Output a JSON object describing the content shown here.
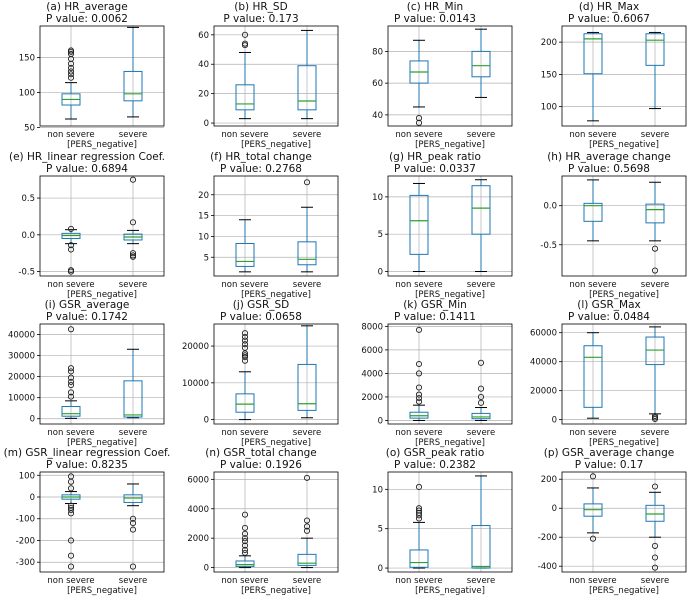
{
  "colors": {
    "box": "#1f77b4",
    "median": "#2ca02c",
    "grid": "#b0b0b0",
    "axis": "#000000"
  },
  "categories": [
    "non severe",
    "severe"
  ],
  "xlabel": "[PERS_negative]",
  "chart_data": [
    {
      "type": "box",
      "title": "(a) HR_average",
      "pvalue": "P value: 0.0062",
      "ylim": [
        52,
        195
      ],
      "yticks": [
        "50",
        "100",
        "150"
      ],
      "ytick_values": [
        50,
        100,
        150
      ],
      "boxes": [
        {
          "min": 62,
          "q1": 82,
          "median": 90,
          "q3": 98,
          "max": 114,
          "outliers": [
            121,
            126,
            130,
            135,
            141,
            148,
            155,
            158,
            160
          ]
        },
        {
          "min": 65,
          "q1": 88,
          "median": 98,
          "q3": 130,
          "max": 193,
          "outliers": []
        }
      ]
    },
    {
      "type": "box",
      "title": "(b) HR_SD",
      "pvalue": "P value: 0.173",
      "ylim": [
        -2,
        66
      ],
      "yticks": [
        "0",
        "20",
        "40",
        "60"
      ],
      "ytick_values": [
        0,
        20,
        40,
        60
      ],
      "boxes": [
        {
          "min": 3,
          "q1": 9,
          "median": 13,
          "q3": 26,
          "max": 48,
          "outliers": [
            53,
            54,
            60
          ]
        },
        {
          "min": 3,
          "q1": 9,
          "median": 15,
          "q3": 39,
          "max": 63,
          "outliers": []
        }
      ]
    },
    {
      "type": "box",
      "title": "(c) HR_Min",
      "pvalue": "P value: 0.0143",
      "ylim": [
        33,
        96
      ],
      "yticks": [
        "40",
        "60",
        "80"
      ],
      "ytick_values": [
        40,
        60,
        80
      ],
      "boxes": [
        {
          "min": 45,
          "q1": 60,
          "median": 67,
          "q3": 74,
          "max": 87,
          "outliers": [
            35,
            38
          ]
        },
        {
          "min": 51,
          "q1": 64,
          "median": 71,
          "q3": 80,
          "max": 94,
          "outliers": []
        }
      ]
    },
    {
      "type": "box",
      "title": "(d) HR_Max",
      "pvalue": "P value: 0.6067",
      "ylim": [
        70,
        225
      ],
      "yticks": [
        "100",
        "150",
        "200"
      ],
      "ytick_values": [
        100,
        150,
        200
      ],
      "boxes": [
        {
          "min": 78,
          "q1": 151,
          "median": 205,
          "q3": 213,
          "max": 215,
          "outliers": []
        },
        {
          "min": 97,
          "q1": 164,
          "median": 203,
          "q3": 213,
          "max": 215,
          "outliers": []
        }
      ]
    },
    {
      "type": "box",
      "title": "(e) HR_linear regression Coef.",
      "pvalue": "P value: 0.6894",
      "ylim": [
        -0.56,
        0.8
      ],
      "yticks": [
        "-0.5",
        "0.0",
        "0.5"
      ],
      "ytick_values": [
        -0.5,
        0,
        0.5
      ],
      "boxes": [
        {
          "min": -0.12,
          "q1": -0.05,
          "median": -0.01,
          "q3": 0.02,
          "max": 0.07,
          "outliers": [
            0.08,
            -0.14,
            -0.2,
            -0.48,
            -0.5
          ]
        },
        {
          "min": -0.12,
          "q1": -0.07,
          "median": -0.03,
          "q3": 0.01,
          "max": 0.06,
          "outliers": [
            0.17,
            0.75,
            -0.25,
            -0.28,
            -0.3
          ]
        }
      ]
    },
    {
      "type": "box",
      "title": "(f) HR_total change",
      "pvalue": "P value: 0.2768",
      "ylim": [
        0.5,
        24.5
      ],
      "yticks": [
        "5",
        "10",
        "15",
        "20"
      ],
      "ytick_values": [
        5,
        10,
        15,
        20
      ],
      "boxes": [
        {
          "min": 1.5,
          "q1": 2.8,
          "median": 4,
          "q3": 8.3,
          "max": 14,
          "outliers": []
        },
        {
          "min": 1.5,
          "q1": 3.2,
          "median": 4.5,
          "q3": 8.7,
          "max": 17,
          "outliers": [
            23
          ]
        }
      ]
    },
    {
      "type": "box",
      "title": "(g) HR_peak ratio",
      "pvalue": "P value: 0.0337",
      "ylim": [
        -0.6,
        12.8
      ],
      "yticks": [
        "0",
        "5",
        "10"
      ],
      "ytick_values": [
        0,
        5,
        10
      ],
      "boxes": [
        {
          "min": 0,
          "q1": 2.3,
          "median": 6.8,
          "q3": 10.2,
          "max": 11.8,
          "outliers": []
        },
        {
          "min": 0,
          "q1": 5,
          "median": 8.5,
          "q3": 11.5,
          "max": 12.3,
          "outliers": []
        }
      ]
    },
    {
      "type": "box",
      "title": "(h) HR_average change",
      "pvalue": "P value: 0.5698",
      "ylim": [
        -0.9,
        0.38
      ],
      "yticks": [
        "-0.5",
        "0.0"
      ],
      "ytick_values": [
        -0.5,
        0
      ],
      "boxes": [
        {
          "min": -0.45,
          "q1": -0.2,
          "median": 0,
          "q3": 0.03,
          "max": 0.33,
          "outliers": []
        },
        {
          "min": -0.45,
          "q1": -0.22,
          "median": -0.05,
          "q3": 0.02,
          "max": 0.3,
          "outliers": [
            -0.55,
            -0.83
          ]
        }
      ]
    },
    {
      "type": "box",
      "title": "(i) GSR_average",
      "pvalue": "P value: 0.1742",
      "ylim": [
        -2500,
        45000
      ],
      "yticks": [
        "0",
        "10000",
        "20000",
        "30000",
        "40000"
      ],
      "ytick_values": [
        0,
        10000,
        20000,
        30000,
        40000
      ],
      "boxes": [
        {
          "min": 200,
          "q1": 1200,
          "median": 2400,
          "q3": 5800,
          "max": 8500,
          "outliers": [
            10500,
            12500,
            16000,
            17500,
            19500,
            22500,
            24000,
            42500
          ]
        },
        {
          "min": 500,
          "q1": 800,
          "median": 1800,
          "q3": 18000,
          "max": 33000,
          "outliers": []
        }
      ]
    },
    {
      "type": "box",
      "title": "(j) GSR_SD",
      "pvalue": "P value: 0.0658",
      "ylim": [
        -1200,
        26000
      ],
      "yticks": [
        "0",
        "10000",
        "20000"
      ],
      "ytick_values": [
        0,
        10000,
        20000
      ],
      "boxes": [
        {
          "min": 0,
          "q1": 2000,
          "median": 4200,
          "q3": 7000,
          "max": 13000,
          "outliers": [
            16000,
            17000,
            17500,
            18000,
            19500,
            20500,
            21500,
            22500,
            23500
          ]
        },
        {
          "min": 500,
          "q1": 2500,
          "median": 4300,
          "q3": 15000,
          "max": 25500,
          "outliers": []
        }
      ]
    },
    {
      "type": "box",
      "title": "(k) GSR_Min",
      "pvalue": "P value: 0.1411",
      "ylim": [
        -300,
        8200
      ],
      "yticks": [
        "0",
        "2000",
        "4000",
        "6000",
        "8000"
      ],
      "ytick_values": [
        0,
        2000,
        4000,
        6000,
        8000
      ],
      "boxes": [
        {
          "min": 0,
          "q1": 200,
          "median": 400,
          "q3": 700,
          "max": 1300,
          "outliers": [
            1600,
            1900,
            2200,
            2800,
            4000,
            4800,
            7700
          ]
        },
        {
          "min": 0,
          "q1": 150,
          "median": 300,
          "q3": 600,
          "max": 1100,
          "outliers": [
            1500,
            2000,
            2700,
            4900
          ]
        }
      ]
    },
    {
      "type": "box",
      "title": "(l) GSR_Max",
      "pvalue": "P value: 0.0484",
      "ylim": [
        -3000,
        66000
      ],
      "yticks": [
        "0",
        "20000",
        "40000",
        "60000"
      ],
      "ytick_values": [
        0,
        20000,
        40000,
        60000
      ],
      "boxes": [
        {
          "min": 1000,
          "q1": 8500,
          "median": 43000,
          "q3": 51000,
          "max": 60000,
          "outliers": []
        },
        {
          "min": 4000,
          "q1": 38000,
          "median": 48000,
          "q3": 57000,
          "max": 64000,
          "outliers": [
            500,
            1500,
            2500
          ]
        }
      ]
    },
    {
      "type": "box",
      "title": "(m) GSR_linear regression Coef.",
      "pvalue": "P value: 0.8235",
      "ylim": [
        -345,
        115
      ],
      "yticks": [
        "-300",
        "-200",
        "-100",
        "0",
        "100"
      ],
      "ytick_values": [
        -300,
        -200,
        -100,
        0,
        100
      ],
      "boxes": [
        {
          "min": -30,
          "q1": -10,
          "median": 0,
          "q3": 10,
          "max": 25,
          "outliers": [
            40,
            70,
            95,
            -40,
            -50,
            -60,
            -75,
            -200,
            -270,
            -320
          ]
        },
        {
          "min": -40,
          "q1": -25,
          "median": -5,
          "q3": 10,
          "max": 60,
          "outliers": [
            -100,
            -120,
            -150,
            -320
          ]
        }
      ]
    },
    {
      "type": "box",
      "title": "(n) GSR_total change",
      "pvalue": "P value: 0.1926",
      "ylim": [
        -300,
        6500
      ],
      "yticks": [
        "0",
        "2000",
        "4000",
        "6000"
      ],
      "ytick_values": [
        0,
        2000,
        4000,
        6000
      ],
      "boxes": [
        {
          "min": 0,
          "q1": 80,
          "median": 200,
          "q3": 450,
          "max": 800,
          "outliers": [
            1000,
            1200,
            1500,
            1800,
            2000,
            2300,
            2700,
            3600
          ]
        },
        {
          "min": 0,
          "q1": 150,
          "median": 300,
          "q3": 900,
          "max": 2000,
          "outliers": [
            2500,
            2800,
            3200,
            6100
          ]
        }
      ]
    },
    {
      "type": "box",
      "title": "(o) GSR_peak ratio",
      "pvalue": "P value: 0.2382",
      "ylim": [
        -0.5,
        12.2
      ],
      "yticks": [
        "0",
        "5",
        "10"
      ],
      "ytick_values": [
        0,
        5,
        10
      ],
      "boxes": [
        {
          "min": 0,
          "q1": 0.1,
          "median": 0.7,
          "q3": 2.3,
          "max": 5.8,
          "outliers": [
            6.3,
            6.7,
            7,
            7.3,
            7.6,
            10.3
          ]
        },
        {
          "min": 0,
          "q1": 0,
          "median": 0.2,
          "q3": 5.4,
          "max": 11.7,
          "outliers": []
        }
      ]
    },
    {
      "type": "box",
      "title": "(p) GSR_average change",
      "pvalue": "P value: 0.17",
      "ylim": [
        -440,
        250
      ],
      "yticks": [
        "-400",
        "-200",
        "0",
        "200"
      ],
      "ytick_values": [
        -400,
        -200,
        0,
        200
      ],
      "boxes": [
        {
          "min": -170,
          "q1": -55,
          "median": -10,
          "q3": 30,
          "max": 140,
          "outliers": [
            220,
            -210
          ]
        },
        {
          "min": -200,
          "q1": -90,
          "median": -40,
          "q3": 20,
          "max": 110,
          "outliers": [
            150,
            -260,
            -340,
            -410
          ]
        }
      ]
    }
  ]
}
